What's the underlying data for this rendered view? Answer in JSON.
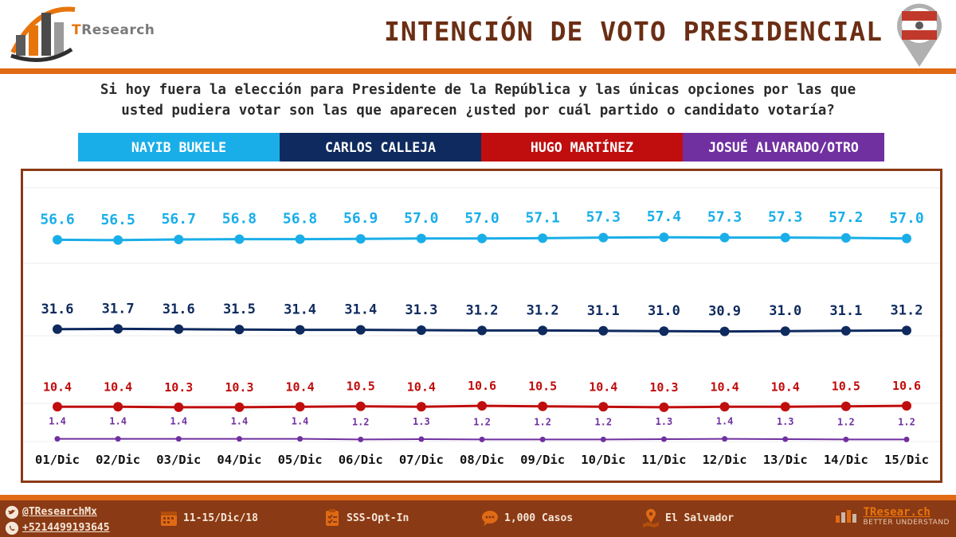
{
  "header": {
    "brand_prefix": "T",
    "brand_rest": "Research",
    "title": "INTENCIÓN DE VOTO PRESIDENCIAL"
  },
  "question": {
    "line1": "Si hoy fuera la elección para Presidente de la República y las únicas opciones por las que",
    "line2": "usted pudiera votar son las que aparecen ¿usted por cuál partido o candidato votaría?"
  },
  "legend": [
    {
      "label": "NAYIB BUKELE",
      "color": "#1aaee8"
    },
    {
      "label": "CARLOS CALLEJA",
      "color": "#0e2a5e"
    },
    {
      "label": "HUGO MARTÍNEZ",
      "color": "#c00d0d"
    },
    {
      "label": "JOSUÉ ALVARADO/OTRO",
      "color": "#7030a0"
    }
  ],
  "chart_data": {
    "type": "line",
    "categories": [
      "01/Dic",
      "02/Dic",
      "03/Dic",
      "04/Dic",
      "05/Dic",
      "06/Dic",
      "07/Dic",
      "08/Dic",
      "09/Dic",
      "10/Dic",
      "11/Dic",
      "12/Dic",
      "13/Dic",
      "14/Dic",
      "15/Dic"
    ],
    "series": [
      {
        "name": "NAYIB BUKELE",
        "color": "#1aaee8",
        "values": [
          56.6,
          56.5,
          56.7,
          56.8,
          56.8,
          56.9,
          57.0,
          57.0,
          57.1,
          57.3,
          57.4,
          57.3,
          57.3,
          57.2,
          57.0
        ]
      },
      {
        "name": "CARLOS CALLEJA",
        "color": "#0e2a5e",
        "values": [
          31.6,
          31.7,
          31.6,
          31.5,
          31.4,
          31.4,
          31.3,
          31.2,
          31.2,
          31.1,
          31.0,
          30.9,
          31.0,
          31.1,
          31.2
        ]
      },
      {
        "name": "HUGO MARTÍNEZ",
        "color": "#c00d0d",
        "values": [
          10.4,
          10.4,
          10.3,
          10.3,
          10.4,
          10.5,
          10.4,
          10.6,
          10.5,
          10.4,
          10.3,
          10.4,
          10.4,
          10.5,
          10.6
        ]
      },
      {
        "name": "JOSUÉ ALVARADO/OTRO",
        "color": "#7030a0",
        "values": [
          1.4,
          1.4,
          1.4,
          1.4,
          1.4,
          1.2,
          1.3,
          1.2,
          1.2,
          1.2,
          1.3,
          1.4,
          1.3,
          1.2,
          1.2
        ]
      }
    ],
    "ylim": [
      0,
      70
    ],
    "grid": true
  },
  "footer": {
    "twitter": "@TResearchMx",
    "phone": "+5214499193645",
    "dates": "11-15/Dic/18",
    "method": "SSS-Opt-In",
    "cases": "1,000 Casos",
    "location": "El Salvador",
    "site": "TResear.ch",
    "tagline": "BETTER UNDERSTAND"
  }
}
